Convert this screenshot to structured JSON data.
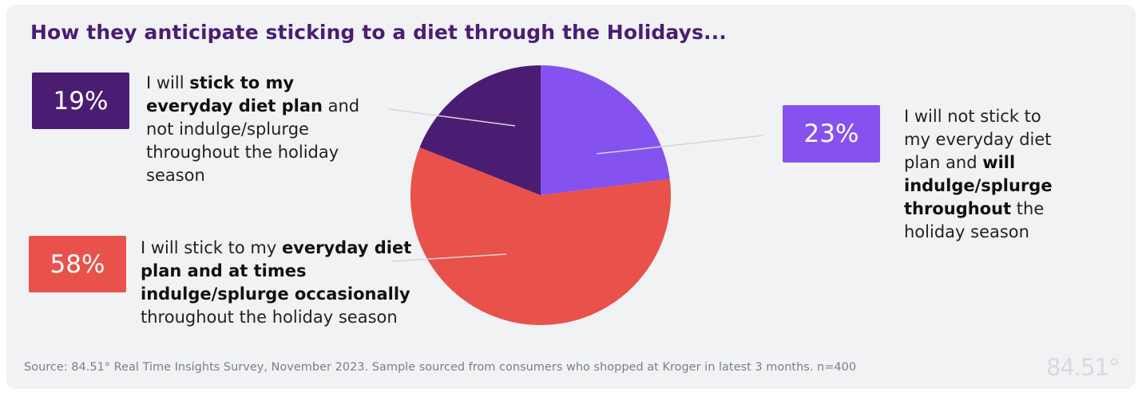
{
  "chart_data": {
    "type": "pie",
    "title": "How they anticipate sticking to a diet through the Holidays...",
    "slices": [
      {
        "id": "not-stick",
        "percent_label": "23%",
        "value": 23,
        "color": "#8551ef",
        "segments": [
          {
            "text": "I will not stick to my everyday diet plan and ",
            "bold": false
          },
          {
            "text": "will indulge/splurge throughout",
            "bold": true
          },
          {
            "text": " the holiday season",
            "bold": false
          }
        ]
      },
      {
        "id": "occasionally",
        "percent_label": "58%",
        "value": 58,
        "color": "#e8524a",
        "segments": [
          {
            "text": "I will stick to my ",
            "bold": false
          },
          {
            "text": "everyday diet plan and at times indulge/splurge occasionally",
            "bold": true
          },
          {
            "text": " throughout the holiday season",
            "bold": false
          }
        ]
      },
      {
        "id": "stick",
        "percent_label": "19%",
        "value": 19,
        "color": "#4b1d72",
        "segments": [
          {
            "text": "I will ",
            "bold": false
          },
          {
            "text": "stick to my everyday diet plan",
            "bold": true
          },
          {
            "text": " and not indulge/splurge throughout the holiday season",
            "bold": false
          }
        ]
      }
    ]
  },
  "footer": {
    "source": "Source:  84.51° Real Time Insights Survey, November 2023. Sample sourced from consumers who shopped at Kroger in latest 3 months. n=400",
    "logo": "84.51°"
  }
}
